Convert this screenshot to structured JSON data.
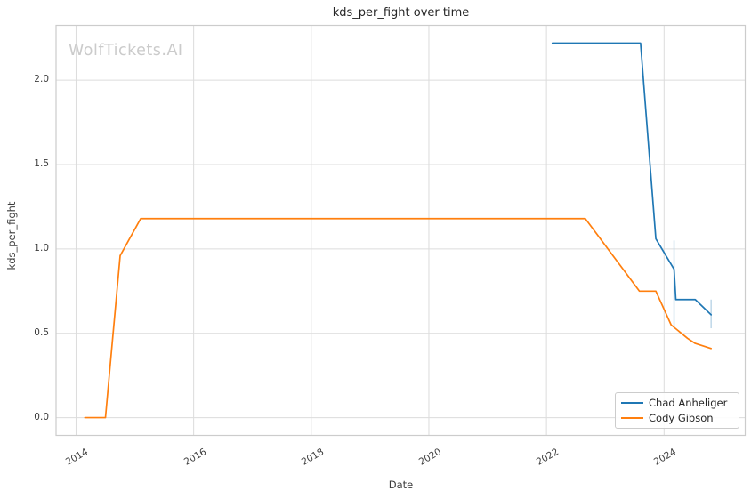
{
  "title": "kds_per_fight over time",
  "watermark": "WolfTickets.AI",
  "axes": {
    "xlabel": "Date",
    "ylabel": "kds_per_fight"
  },
  "legend": {
    "position": "lower right",
    "items": [
      {
        "label": "Chad Anheliger",
        "color": "#1f77b4"
      },
      {
        "label": "Cody Gibson",
        "color": "#ff7f0e"
      }
    ]
  },
  "colors": {
    "grid": "#dcdcdc",
    "spine": "#cccccc",
    "error_bar": "#bed7e9",
    "tick_text": "#3c3c3c",
    "watermark": "#cbcbcb"
  },
  "chart_data": {
    "type": "line",
    "title": "kds_per_fight over time",
    "xlabel": "Date",
    "ylabel": "kds_per_fight",
    "grid": true,
    "legend_position": "lower right",
    "xlim": [
      2013.66,
      2025.38
    ],
    "ylim": [
      -0.105,
      2.325
    ],
    "x_tick_labels": [
      "2014",
      "2016",
      "2018",
      "2020",
      "2022",
      "2024"
    ],
    "x_ticks": [
      2014,
      2016,
      2018,
      2020,
      2022,
      2024
    ],
    "y_tick_labels": [
      "0.0",
      "0.5",
      "1.0",
      "1.5",
      "2.0"
    ],
    "y_ticks": [
      0.0,
      0.5,
      1.0,
      1.5,
      2.0
    ],
    "series": [
      {
        "name": "Chad Anheliger",
        "color": "#1f77b4",
        "points": [
          [
            2022.1,
            2.22
          ],
          [
            2023.6,
            2.22
          ],
          [
            2023.86,
            1.06
          ],
          [
            2024.17,
            0.88
          ],
          [
            2024.2,
            0.7
          ],
          [
            2024.53,
            0.7
          ],
          [
            2024.8,
            0.61
          ]
        ]
      },
      {
        "name": "Cody Gibson",
        "color": "#ff7f0e",
        "points": [
          [
            2014.15,
            0.0
          ],
          [
            2014.5,
            0.0
          ],
          [
            2014.75,
            0.96
          ],
          [
            2015.1,
            1.18
          ],
          [
            2022.66,
            1.18
          ],
          [
            2023.58,
            0.75
          ],
          [
            2023.86,
            0.75
          ],
          [
            2024.12,
            0.55
          ],
          [
            2024.4,
            0.47
          ],
          [
            2024.53,
            0.44
          ],
          [
            2024.8,
            0.41
          ]
        ]
      }
    ],
    "error_bars": [
      {
        "series": "Chad Anheliger",
        "x": 2024.17,
        "y_low": 0.54,
        "y_high": 1.05
      },
      {
        "series": "Chad Anheliger",
        "x": 2024.8,
        "y_low": 0.53,
        "y_high": 0.7
      }
    ]
  }
}
